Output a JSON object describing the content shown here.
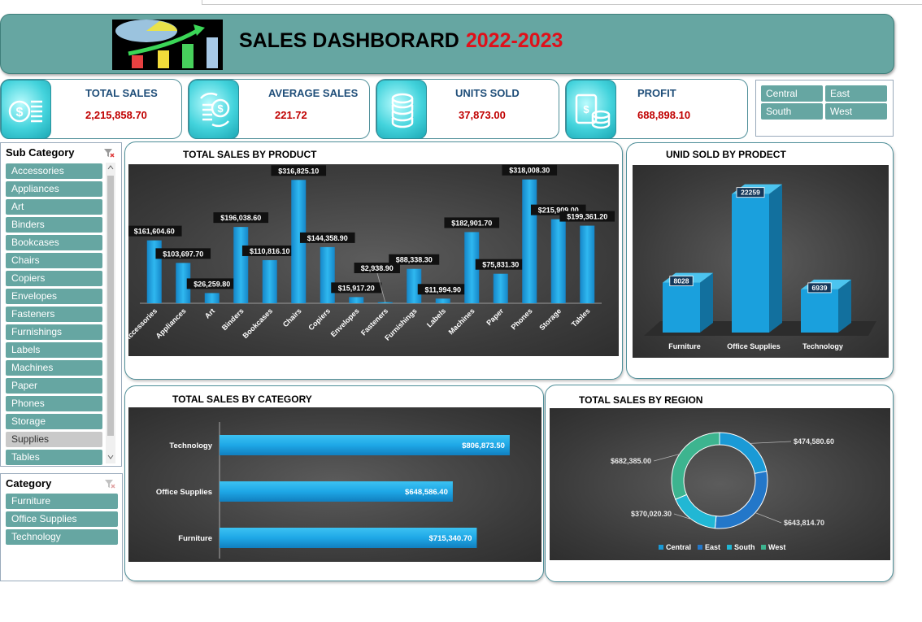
{
  "header": {
    "title": "SALES DASHBORARD",
    "year": "2022-2023"
  },
  "kpis": [
    {
      "label": "TOTAL SALES",
      "value": "2,215,858.70",
      "icon": "coins-dollar-icon"
    },
    {
      "label": "AVERAGE SALES",
      "value": "221.72",
      "icon": "coins-exchange-icon"
    },
    {
      "label": "UNITS SOLD",
      "value": "37,873.00",
      "icon": "coin-stack-icon"
    },
    {
      "label": "PROFIT",
      "value": "688,898.10",
      "icon": "cash-coins-icon"
    }
  ],
  "region_slicer": {
    "items": [
      "Central",
      "East",
      "South",
      "West"
    ]
  },
  "subcategory_slicer": {
    "header": "Sub Category",
    "items": [
      "Accessories",
      "Appliances",
      "Art",
      "Binders",
      "Bookcases",
      "Chairs",
      "Copiers",
      "Envelopes",
      "Fasteners",
      "Furnishings",
      "Labels",
      "Machines",
      "Paper",
      "Phones",
      "Storage",
      "Supplies",
      "Tables"
    ],
    "selected": "Supplies"
  },
  "category_slicer": {
    "header": "Category",
    "items": [
      "Furniture",
      "Office Supplies",
      "Technology"
    ]
  },
  "colors": {
    "teal": "#66a6a2",
    "bar": "#1ea7e6",
    "red": "#c00000",
    "central": "#1a9ad6",
    "east": "#2377c9",
    "south": "#21b7d4",
    "west": "#3db48f"
  },
  "chart_data": [
    {
      "type": "bar",
      "title": "TOTAL SALES BY PRODUCT",
      "categories": [
        "Accessories",
        "Appliances",
        "Art",
        "Binders",
        "Bookcases",
        "Chairs",
        "Copiers",
        "Envelopes",
        "Fasteners",
        "Furnishings",
        "Labels",
        "Machines",
        "Paper",
        "Phones",
        "Storage",
        "Tables"
      ],
      "values": [
        161604.6,
        103697.7,
        26259.8,
        196038.6,
        110816.1,
        316825.1,
        144358.9,
        15917.2,
        2938.9,
        88338.3,
        11994.9,
        182901.7,
        75831.3,
        318008.3,
        215909.0,
        199361.2
      ],
      "labels": [
        "$161,604.60",
        "$103,697.70",
        "$26,259.80",
        "$196,038.60",
        "$110,816.10",
        "$316,825.10",
        "$144,358.90",
        "$15,917.20",
        "$2,938.90",
        "$88,338.30",
        "$11,994.90",
        "$182,901.70",
        "$75,831.30",
        "$318,008.30",
        "$215,909.00",
        "$199,361.20"
      ],
      "ylim": [
        0,
        330000
      ]
    },
    {
      "type": "bar",
      "title": "UNID SOLD BY PRODECT",
      "categories": [
        "Furniture",
        "Office Supplies",
        "Technology"
      ],
      "values": [
        8028,
        22259,
        6939
      ],
      "labels": [
        "8028",
        "22259",
        "6939"
      ],
      "ylim": [
        0,
        23000
      ]
    },
    {
      "type": "bar",
      "orientation": "horizontal",
      "title": "TOTAL SALES BY CATEGORY",
      "categories": [
        "Technology",
        "Office Supplies",
        "Furniture"
      ],
      "values": [
        806873.5,
        648586.4,
        715340.7
      ],
      "labels": [
        "$806,873.50",
        "$648,586.40",
        "$715,340.70"
      ],
      "xlim": [
        0,
        850000
      ]
    },
    {
      "type": "pie",
      "title": "TOTAL SALES BY REGION",
      "categories": [
        "Central",
        "East",
        "South",
        "West"
      ],
      "values": [
        474580.6,
        643814.7,
        370020.3,
        682385.0
      ],
      "labels": [
        "$474,580.60",
        "$643,814.70",
        "$370,020.30",
        "$682,385.00"
      ],
      "legend": "bottom"
    }
  ]
}
